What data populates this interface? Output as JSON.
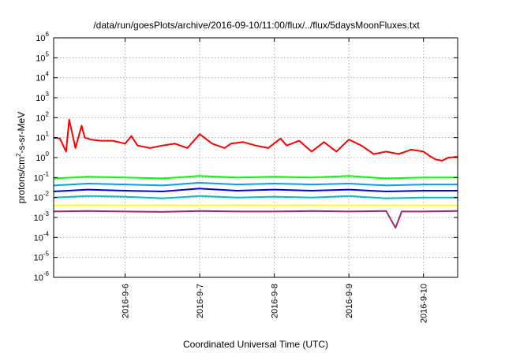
{
  "chart_data": {
    "type": "line",
    "title": "/data/run/goesPlots/archive/2016-09-10/11:00/flux/../flux/5daysMoonFluxes.txt",
    "xlabel": "Coordinated Universal Time (UTC)",
    "ylabel_parts": {
      "pre": "protons/cm",
      "sup": "2",
      "post": "-s-sr-MeV"
    },
    "y_scale": "log",
    "ylim": [
      1e-06,
      1000000.0
    ],
    "xlim": [
      "2016-09-05T01:00",
      "2016-09-10T11:00"
    ],
    "grid": true,
    "y_ticks": [
      {
        "base": "10",
        "exp": "-6",
        "value": 1e-06
      },
      {
        "base": "10",
        "exp": "-5",
        "value": 1e-05
      },
      {
        "base": "10",
        "exp": "-4",
        "value": 0.0001
      },
      {
        "base": "10",
        "exp": "-3",
        "value": 0.001
      },
      {
        "base": "10",
        "exp": "-2",
        "value": 0.01
      },
      {
        "base": "10",
        "exp": "-1",
        "value": 0.1
      },
      {
        "base": "10",
        "exp": "0",
        "value": 1
      },
      {
        "base": "10",
        "exp": "1",
        "value": 10
      },
      {
        "base": "10",
        "exp": "2",
        "value": 100
      },
      {
        "base": "10",
        "exp": "3",
        "value": 1000
      },
      {
        "base": "10",
        "exp": "4",
        "value": 10000
      },
      {
        "base": "10",
        "exp": "5",
        "value": 100000
      },
      {
        "base": "10",
        "exp": "6",
        "value": 1000000
      }
    ],
    "x_ticks": [
      {
        "label": "2016-9-6",
        "date": "2016-09-06T00:00"
      },
      {
        "label": "2016-9-7",
        "date": "2016-09-07T00:00"
      },
      {
        "label": "2016-9-8",
        "date": "2016-09-08T00:00"
      },
      {
        "label": "2016-9-9",
        "date": "2016-09-09T00:00"
      },
      {
        "label": "2016-9-10",
        "date": "2016-09-10T00:00"
      }
    ],
    "series": [
      {
        "color": "#ff0000",
        "x": [
          "2016-09-05T01:00",
          "2016-09-05T03:00",
          "2016-09-05T05:00",
          "2016-09-05T06:00",
          "2016-09-05T08:00",
          "2016-09-05T10:00",
          "2016-09-05T11:00",
          "2016-09-05T13:00",
          "2016-09-05T16:00",
          "2016-09-05T20:00",
          "2016-09-06T00:00",
          "2016-09-06T02:00",
          "2016-09-06T04:00",
          "2016-09-06T08:00",
          "2016-09-06T12:00",
          "2016-09-06T16:00",
          "2016-09-06T20:00",
          "2016-09-07T00:00",
          "2016-09-07T04:00",
          "2016-09-07T08:00",
          "2016-09-07T10:00",
          "2016-09-07T14:00",
          "2016-09-07T18:00",
          "2016-09-07T22:00",
          "2016-09-08T02:00",
          "2016-09-08T04:00",
          "2016-09-08T08:00",
          "2016-09-08T12:00",
          "2016-09-08T16:00",
          "2016-09-08T20:00",
          "2016-09-09T00:00",
          "2016-09-09T04:00",
          "2016-09-09T08:00",
          "2016-09-09T12:00",
          "2016-09-09T16:00",
          "2016-09-09T20:00",
          "2016-09-10T00:00",
          "2016-09-10T02:00",
          "2016-09-10T04:00",
          "2016-09-10T06:00",
          "2016-09-10T08:00",
          "2016-09-10T11:00"
        ],
        "y": [
          10,
          9,
          2,
          80,
          3,
          40,
          10,
          8,
          7,
          7,
          5,
          12,
          4,
          3,
          4,
          5,
          3,
          15,
          5,
          3,
          5,
          6,
          4,
          3,
          9,
          4,
          7,
          2,
          6,
          2,
          8,
          4,
          1.5,
          2,
          1.5,
          2.5,
          2,
          1.2,
          0.8,
          0.7,
          1,
          1.1
        ]
      },
      {
        "color": "#00ff00",
        "x": [
          "2016-09-05T01:00",
          "2016-09-05T12:00",
          "2016-09-06T00:00",
          "2016-09-06T12:00",
          "2016-09-07T00:00",
          "2016-09-07T12:00",
          "2016-09-08T00:00",
          "2016-09-08T12:00",
          "2016-09-09T00:00",
          "2016-09-09T12:00",
          "2016-09-10T00:00",
          "2016-09-10T11:00"
        ],
        "y": [
          0.09,
          0.11,
          0.1,
          0.09,
          0.12,
          0.1,
          0.11,
          0.1,
          0.12,
          0.09,
          0.1,
          0.1
        ]
      },
      {
        "color": "#00a0ff",
        "x": [
          "2016-09-05T01:00",
          "2016-09-05T12:00",
          "2016-09-06T00:00",
          "2016-09-06T12:00",
          "2016-09-07T00:00",
          "2016-09-07T12:00",
          "2016-09-08T00:00",
          "2016-09-08T12:00",
          "2016-09-09T00:00",
          "2016-09-09T12:00",
          "2016-09-10T00:00",
          "2016-09-10T11:00"
        ],
        "y": [
          0.04,
          0.05,
          0.045,
          0.04,
          0.055,
          0.045,
          0.05,
          0.045,
          0.05,
          0.04,
          0.045,
          0.045
        ]
      },
      {
        "color": "#0000ff",
        "x": [
          "2016-09-05T01:00",
          "2016-09-05T12:00",
          "2016-09-06T00:00",
          "2016-09-06T12:00",
          "2016-09-07T00:00",
          "2016-09-07T12:00",
          "2016-09-08T00:00",
          "2016-09-08T12:00",
          "2016-09-09T00:00",
          "2016-09-09T12:00",
          "2016-09-10T00:00",
          "2016-09-10T11:00"
        ],
        "y": [
          0.02,
          0.025,
          0.022,
          0.02,
          0.028,
          0.022,
          0.025,
          0.022,
          0.025,
          0.02,
          0.022,
          0.022
        ]
      },
      {
        "color": "#00c0c0",
        "x": [
          "2016-09-05T01:00",
          "2016-09-05T12:00",
          "2016-09-06T00:00",
          "2016-09-06T12:00",
          "2016-09-07T00:00",
          "2016-09-07T12:00",
          "2016-09-08T00:00",
          "2016-09-08T12:00",
          "2016-09-09T00:00",
          "2016-09-09T12:00",
          "2016-09-10T00:00",
          "2016-09-10T11:00"
        ],
        "y": [
          0.01,
          0.012,
          0.011,
          0.009,
          0.012,
          0.01,
          0.011,
          0.01,
          0.012,
          0.009,
          0.01,
          0.01
        ]
      },
      {
        "color": "#ffff00",
        "x": [
          "2016-09-05T01:00",
          "2016-09-05T12:00",
          "2016-09-06T00:00",
          "2016-09-06T12:00",
          "2016-09-07T00:00",
          "2016-09-07T12:00",
          "2016-09-08T00:00",
          "2016-09-08T12:00",
          "2016-09-09T00:00",
          "2016-09-09T12:00",
          "2016-09-10T00:00",
          "2016-09-10T11:00"
        ],
        "y": [
          0.004,
          0.0042,
          0.004,
          0.0041,
          0.004,
          0.0042,
          0.004,
          0.0041,
          0.004,
          0.0041,
          0.004,
          0.004
        ]
      },
      {
        "color": "#9b2d6e",
        "x": [
          "2016-09-05T01:00",
          "2016-09-05T12:00",
          "2016-09-06T00:00",
          "2016-09-06T12:00",
          "2016-09-07T00:00",
          "2016-09-07T12:00",
          "2016-09-08T00:00",
          "2016-09-08T12:00",
          "2016-09-09T00:00",
          "2016-09-09T12:00",
          "2016-09-09T15:00",
          "2016-09-09T17:00",
          "2016-09-10T00:00",
          "2016-09-10T11:00"
        ],
        "y": [
          0.002,
          0.0021,
          0.002,
          0.0019,
          0.0021,
          0.002,
          0.002,
          0.0021,
          0.002,
          0.0021,
          0.0003,
          0.002,
          0.002,
          0.0021
        ]
      }
    ]
  }
}
